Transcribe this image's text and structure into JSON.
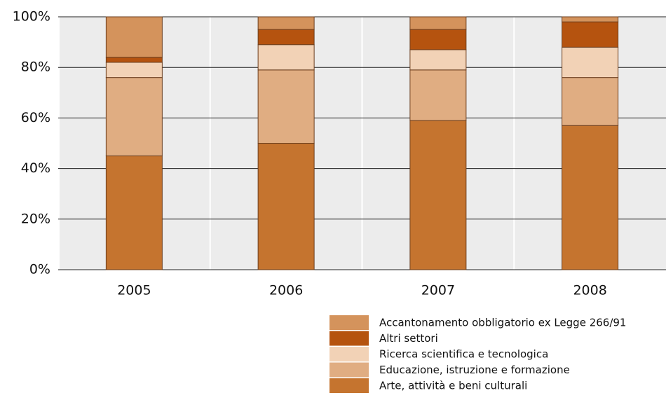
{
  "chart_data": {
    "type": "stacked_bar",
    "categories": [
      "2005",
      "2006",
      "2007",
      "2008"
    ],
    "series": [
      {
        "name": "Arte, attività e beni culturali",
        "color": "#c5742f",
        "values": [
          45,
          50,
          59,
          57
        ]
      },
      {
        "name": "Educazione, istruzione e formazione",
        "color": "#e0ad82",
        "values": [
          31,
          29,
          20,
          19
        ]
      },
      {
        "name": "Ricerca scientifica e tecnologica",
        "color": "#f2d2b6",
        "values": [
          6,
          10,
          8,
          12
        ]
      },
      {
        "name": "Altri settori",
        "color": "#b5530f",
        "values": [
          2,
          6,
          8,
          10
        ]
      },
      {
        "name": "Accantonamento obbligatorio ex Legge 266/91",
        "color": "#d4935c",
        "values": [
          16,
          5,
          5,
          2
        ]
      }
    ],
    "ylim": [
      0,
      100
    ],
    "yticks": [
      {
        "value": 0,
        "label": "0%"
      },
      {
        "value": 20,
        "label": "20%"
      },
      {
        "value": 40,
        "label": "40%"
      },
      {
        "value": 60,
        "label": "60%"
      },
      {
        "value": 80,
        "label": "80%"
      },
      {
        "value": 100,
        "label": "100%"
      }
    ],
    "grid": true
  }
}
